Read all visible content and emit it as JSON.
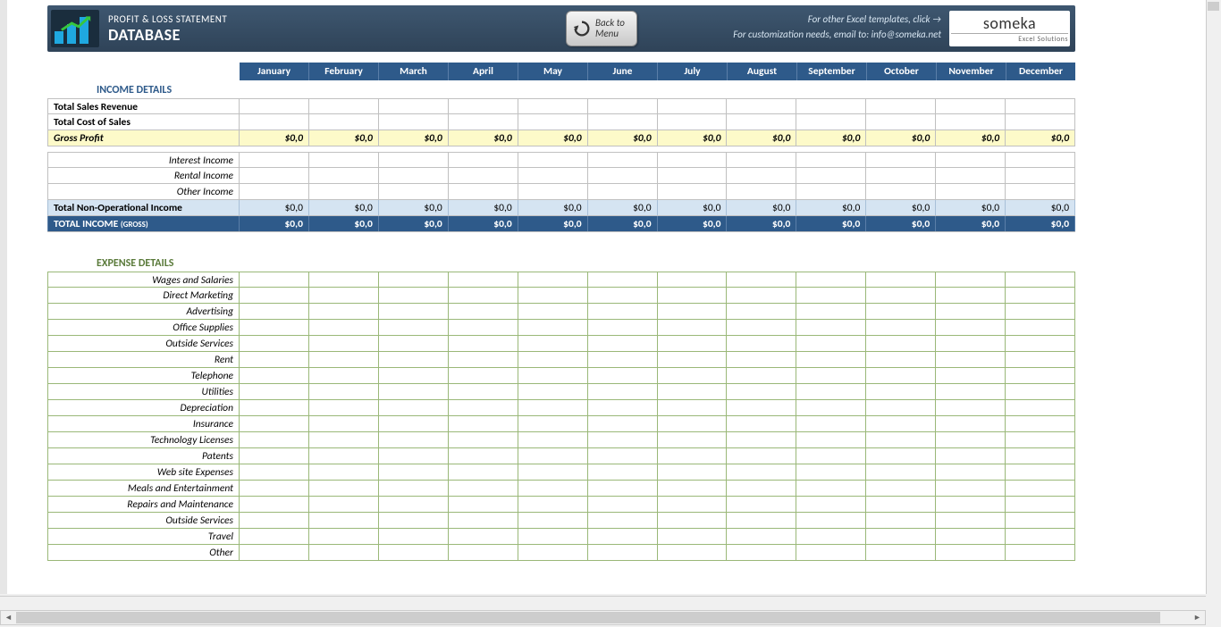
{
  "header": {
    "title_small": "PROFIT & LOSS STATEMENT",
    "title_big": "DATABASE",
    "back_line1": "Back to",
    "back_line2": "Menu",
    "right_line1": "For other Excel templates, click →",
    "right_line2": "For customization needs, email to: info@someka.net",
    "logo_main": "someka",
    "logo_sub": "Excel Solutions"
  },
  "colors": {
    "header_bg_top": "#3e5770",
    "header_bg_bottom": "#2f4358",
    "month_bg": "#2e5a8a",
    "gross_bg": "#fdfac9",
    "subtotal_bg": "#d5e4f2",
    "total_bg": "#2e5a8a",
    "income_title": "#2e5a8a",
    "expense_title": "#5a7a3a",
    "grid_border": "#c0c0c0",
    "green_border": "#9ab878",
    "chart_bar": "#1fa8e0",
    "chart_arrow": "#37c63d"
  },
  "months": [
    "January",
    "February",
    "March",
    "April",
    "May",
    "June",
    "July",
    "August",
    "September",
    "October",
    "November",
    "December"
  ],
  "income": {
    "section_title": "INCOME DETAILS",
    "rows_top": [
      {
        "label": "Total Sales Revenue",
        "bold": true,
        "left": true,
        "values": [
          "",
          "",
          "",
          "",
          "",
          "",
          "",
          "",
          "",
          "",
          "",
          ""
        ]
      },
      {
        "label": "Total Cost of Sales",
        "bold": true,
        "left": true,
        "values": [
          "",
          "",
          "",
          "",
          "",
          "",
          "",
          "",
          "",
          "",
          "",
          ""
        ]
      }
    ],
    "gross": {
      "label": "Gross Profit",
      "values": [
        "$0,0",
        "$0,0",
        "$0,0",
        "$0,0",
        "$0,0",
        "$0,0",
        "$0,0",
        "$0,0",
        "$0,0",
        "$0,0",
        "$0,0",
        "$0,0"
      ]
    },
    "rows_mid": [
      {
        "label": "Interest Income",
        "italic": true,
        "values": [
          "",
          "",
          "",
          "",
          "",
          "",
          "",
          "",
          "",
          "",
          "",
          ""
        ]
      },
      {
        "label": "Rental Income",
        "italic": true,
        "values": [
          "",
          "",
          "",
          "",
          "",
          "",
          "",
          "",
          "",
          "",
          "",
          ""
        ]
      },
      {
        "label": "Other Income",
        "italic": true,
        "values": [
          "",
          "",
          "",
          "",
          "",
          "",
          "",
          "",
          "",
          "",
          "",
          ""
        ]
      }
    ],
    "subtotal": {
      "label": "Total Non-Operational Income",
      "values": [
        "$0,0",
        "$0,0",
        "$0,0",
        "$0,0",
        "$0,0",
        "$0,0",
        "$0,0",
        "$0,0",
        "$0,0",
        "$0,0",
        "$0,0",
        "$0,0"
      ]
    },
    "total": {
      "label": "TOTAL INCOME",
      "label_small": "(GROSS)",
      "values": [
        "$0,0",
        "$0,0",
        "$0,0",
        "$0,0",
        "$0,0",
        "$0,0",
        "$0,0",
        "$0,0",
        "$0,0",
        "$0,0",
        "$0,0",
        "$0,0"
      ]
    }
  },
  "expense": {
    "section_title": "EXPENSE DETAILS",
    "rows": [
      "Wages and Salaries",
      "Direct Marketing",
      "Advertising",
      "Office Supplies",
      "Outside Services",
      "Rent",
      "Telephone",
      "Utilities",
      "Depreciation",
      "Insurance",
      "Technology Licenses",
      "Patents",
      "Web site Expenses",
      "Meals and Entertainment",
      "Repairs and Maintenance",
      "Outside Services",
      "Travel",
      "Other"
    ]
  }
}
